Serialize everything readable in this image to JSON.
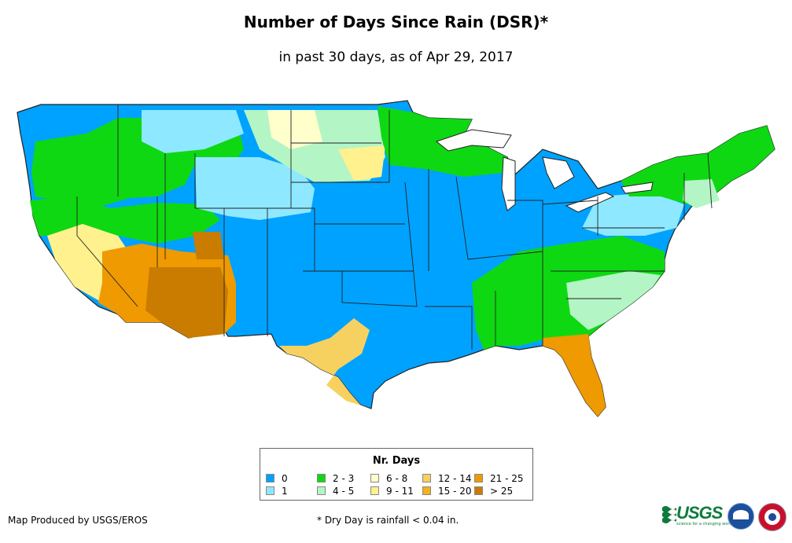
{
  "header": {
    "title": "Number of Days Since Rain (DSR)*",
    "subtitle": "in past 30 days, as of Apr 29, 2017"
  },
  "legend": {
    "title": "Nr. Days",
    "items": [
      {
        "label": "0",
        "color": "#00a2ff"
      },
      {
        "label": "1",
        "color": "#8ee8ff"
      },
      {
        "label": "2 - 3",
        "color": "#0ed812"
      },
      {
        "label": "4 - 5",
        "color": "#b4f5c5"
      },
      {
        "label": "6 - 8",
        "color": "#ffffcc"
      },
      {
        "label": "9 - 11",
        "color": "#fff18e"
      },
      {
        "label": "12 - 14",
        "color": "#f7d160"
      },
      {
        "label": "15 - 20",
        "color": "#f5b21a"
      },
      {
        "label": "21 - 25",
        "color": "#ef9a00"
      },
      {
        "label": "> 25",
        "color": "#c97c00"
      }
    ]
  },
  "footer": {
    "credit": "Map Produced by USGS/EROS",
    "note": "* Dry Day is rainfall < 0.04 in."
  },
  "logos": {
    "usgs": "USGS",
    "usgs_tagline": "science for a changing world",
    "noaa": "noaa-logo",
    "nws": "nws-logo"
  }
}
